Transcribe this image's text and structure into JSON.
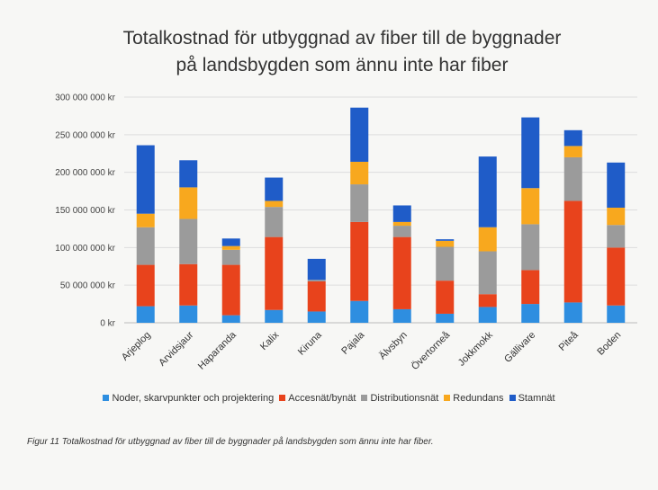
{
  "chart_data": {
    "type": "bar",
    "stacked": true,
    "title_line1": "Totalkostnad för utbyggnad av fiber till de byggnader",
    "title_line2": "på landsbygden som ännu inte har fiber",
    "categories": [
      "Arjeplog",
      "Arvidsjaur",
      "Haparanda",
      "Kalix",
      "Kiruna",
      "Pajala",
      "Älvsbyn",
      "Övertorneå",
      "Jokkmokk",
      "Gällivare",
      "Piteå",
      "Boden"
    ],
    "y_ticks": [
      "0 kr",
      "50 000 000 kr",
      "100 000 000 kr",
      "150 000 000 kr",
      "200 000 000 kr",
      "250 000 000 kr",
      "300 000 000 kr"
    ],
    "ylim": [
      0,
      300000000
    ],
    "legend_position": "bottom",
    "series": [
      {
        "name": "Noder, skarvpunkter och projektering",
        "color": "#2e8ee0",
        "values": [
          22000000,
          23000000,
          10000000,
          17000000,
          15000000,
          29000000,
          18000000,
          12000000,
          21000000,
          25000000,
          27000000,
          23000000
        ]
      },
      {
        "name": "Accesnät/bynät",
        "color": "#e8431c",
        "values": [
          55000000,
          55000000,
          67000000,
          97000000,
          40000000,
          105000000,
          96000000,
          44000000,
          17000000,
          45000000,
          135000000,
          77000000
        ]
      },
      {
        "name": "Distributionsnät",
        "color": "#9b9b9b",
        "values": [
          50000000,
          60000000,
          20000000,
          40000000,
          2000000,
          50000000,
          15000000,
          45000000,
          57000000,
          61000000,
          58000000,
          30000000
        ]
      },
      {
        "name": "Redundans",
        "color": "#f8a81e",
        "values": [
          18000000,
          42000000,
          5000000,
          8000000,
          0,
          30000000,
          5000000,
          8000000,
          32000000,
          48000000,
          15000000,
          23000000
        ]
      },
      {
        "name": "Stamnät",
        "color": "#1f5cc8",
        "values": [
          91000000,
          36000000,
          10000000,
          31000000,
          28000000,
          72000000,
          22000000,
          2000000,
          94000000,
          94000000,
          21000000,
          60000000
        ]
      }
    ]
  },
  "caption": "Figur 11 Totalkostnad för utbyggnad av fiber till de byggnader på landsbygden som ännu inte har fiber."
}
